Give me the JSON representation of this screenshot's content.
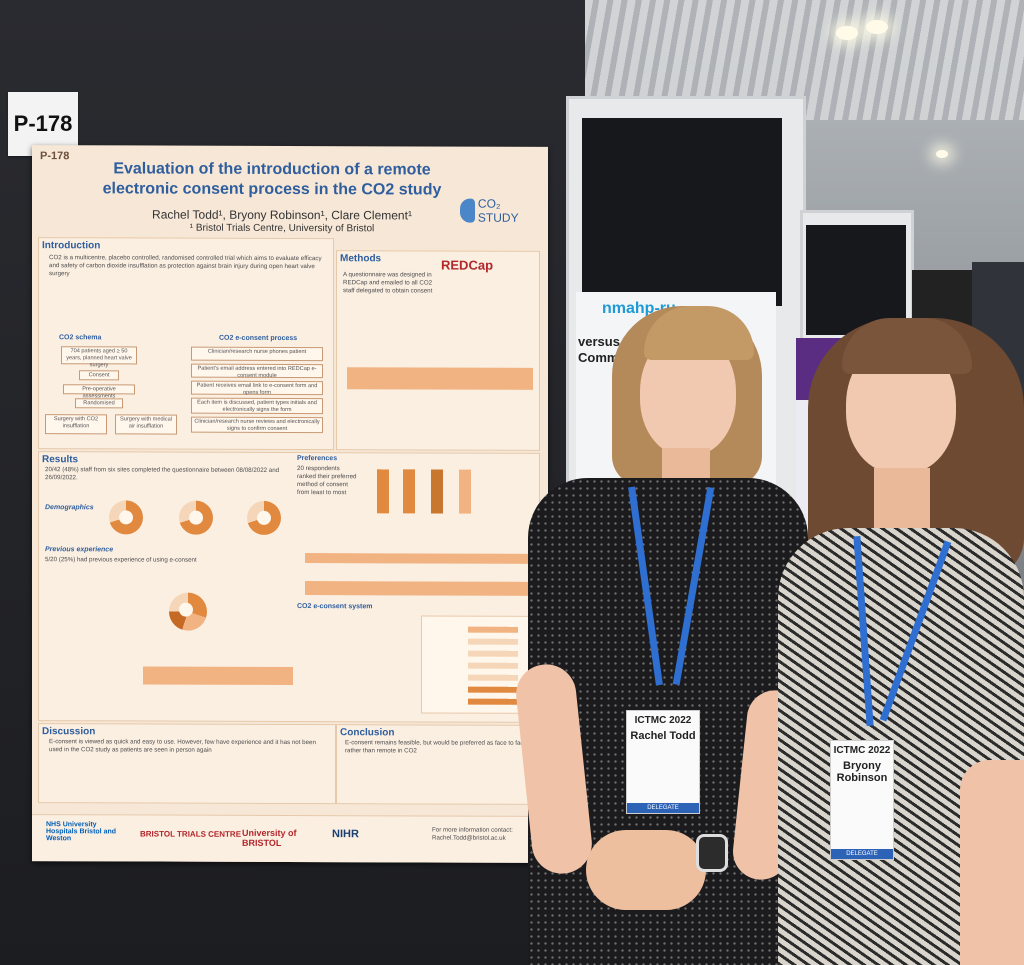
{
  "board_tag": "P-178",
  "poster": {
    "number": "P-178",
    "title": "Evaluation of the introduction of a remote electronic consent process in the CO2 study",
    "authors": "Rachel Todd¹, Bryony Robinson¹, Clare Clement¹",
    "affiliation": "¹ Bristol Trials Centre, University of Bristol",
    "logo_text": "CO₂ STUDY",
    "sections": {
      "introduction": "Introduction",
      "methods": "Methods",
      "results": "Results",
      "discussion": "Discussion",
      "conclusion": "Conclusion"
    },
    "intro_text": "CO2 is a multicentre, placebo controlled, randomised controlled trial which aims to evaluate efficacy and safety of carbon dioxide insufflation as protection against brain injury during open heart valve surgery",
    "methods_logo": "REDCap",
    "methods_text": "A questionnaire was designed in REDCap and emailed to all CO2 staff delegated to obtain consent",
    "schema_title": "CO2 schema",
    "eprocess_title": "CO2 e-consent process",
    "schema_boxes": [
      "704 patients aged ≥ 50 years, planned heart valve surgery",
      "Consent",
      "Pre-operative assessments",
      "Randomised",
      "Surgery with CO2 insufflation",
      "Surgery with medical air insufflation"
    ],
    "process_boxes": [
      "Clinician/research nurse phones patient",
      "Patient's email address entered into REDCap e-consent module",
      "Patient receives email link to e-consent form and opens form",
      "Each item is discussed, patient types initials and electronically signs the form",
      "Clinician/research nurse reviews and electronically signs to confirm consent"
    ],
    "results_text": "20/42 (48%) staff from six sites completed the questionnaire between 08/08/2022 and 26/09/2022.",
    "demographics_label": "Demographics",
    "prev_exp_label": "Previous experience",
    "prev_exp_text": "5/20 (25%) had previous experience of using e-consent",
    "preferences_label": "Preferences",
    "preferences_text": "20 respondents ranked their preferred method of consent from least to most",
    "system_label": "CO2 e-consent system",
    "discussion_text": "E-consent is viewed as quick and easy to use. However, few have experience and it has not been used in the CO2 study as patients are seen in person again",
    "conclusion_text": "E-consent remains feasible, but would be preferred as face to face rather than remote in CO2",
    "footer_logos": [
      "NHS University Hospitals Bristol and Weston",
      "BRISTOL TRIALS CENTRE",
      "University of BRISTOL",
      "NIHR"
    ],
    "contact": "For more information contact: Rachel.Todd@bristol.ac.uk"
  },
  "badges": [
    {
      "conf": "ICTMC 2022",
      "name": "Rachel Todd",
      "role": "DELEGATE"
    },
    {
      "conf": "ICTMC 2022",
      "name": "Bryony Robinson",
      "role": "DELEGATE"
    }
  ],
  "background_poster_text": "nmahp-ru",
  "background_poster_subtitle": "versus OPT Commo",
  "colors": {
    "poster_bg": "#f6e7d6",
    "accent_blue": "#2f5e9e",
    "accent_orange": "#e1893f",
    "lanyard": "#2e6fd1"
  }
}
